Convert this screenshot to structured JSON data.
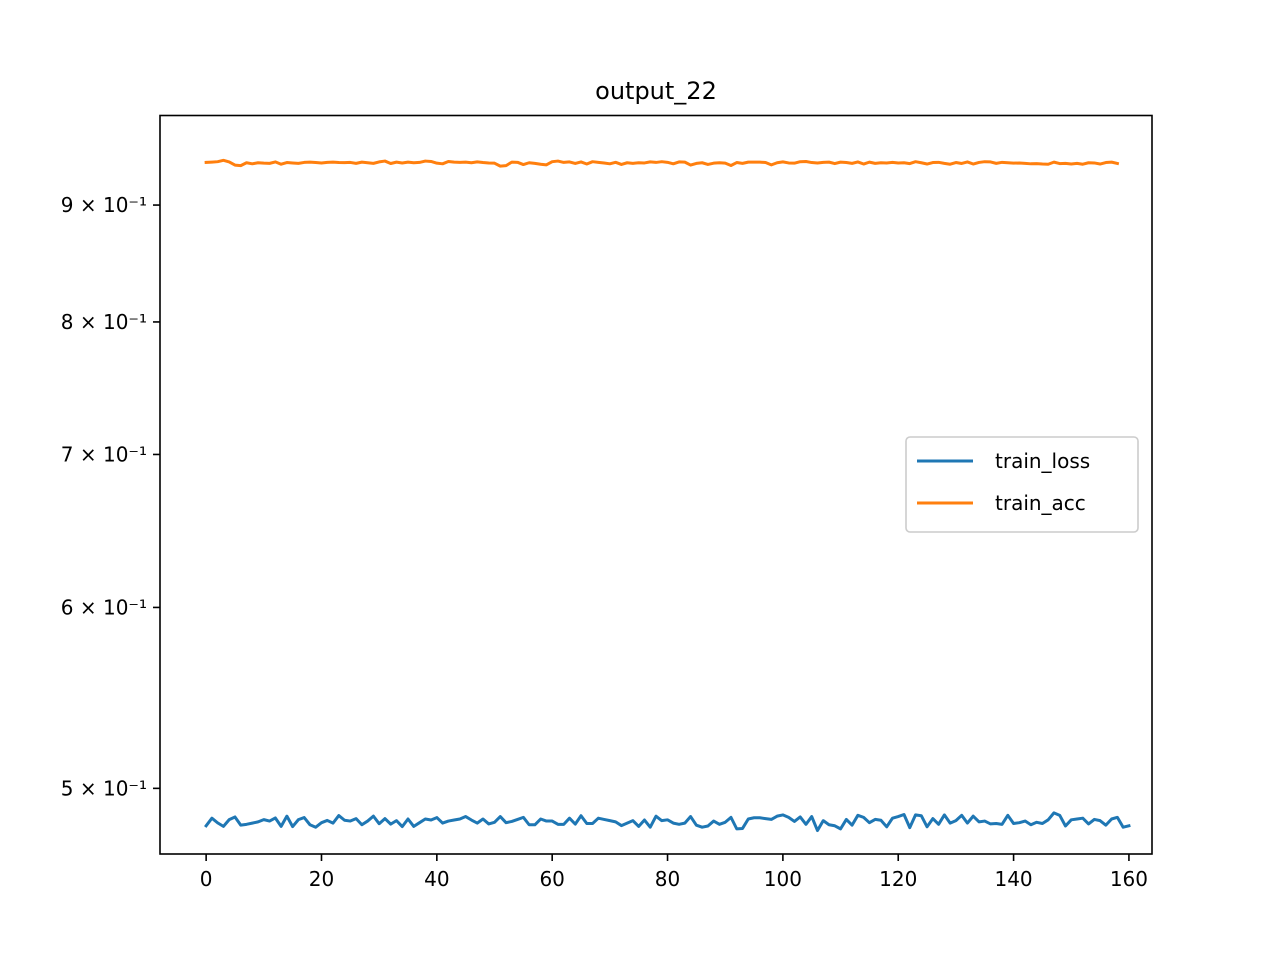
{
  "chart_data": {
    "type": "line",
    "title": "output_22",
    "xlabel": "",
    "ylabel": "",
    "y_scale": "log",
    "xlim": [
      -8,
      164
    ],
    "ylim": [
      0.468,
      0.985
    ],
    "x_ticks": [
      0,
      20,
      40,
      60,
      80,
      100,
      120,
      140,
      160
    ],
    "y_ticks": [
      {
        "value": 0.5,
        "label": "5 × 10⁻¹"
      },
      {
        "value": 0.6,
        "label": "6 × 10⁻¹"
      },
      {
        "value": 0.7,
        "label": "7 × 10⁻¹"
      },
      {
        "value": 0.8,
        "label": "8 × 10⁻¹"
      },
      {
        "value": 0.9,
        "label": "9 × 10⁻¹"
      }
    ],
    "grid": false,
    "legend_position": "center-right",
    "series": [
      {
        "name": "train_loss",
        "color": "#1f77b4",
        "values": [
          0.4815,
          0.4852,
          0.4829,
          0.4812,
          0.4845,
          0.4858,
          0.4818,
          0.4822,
          0.4828,
          0.4834,
          0.4845,
          0.4838,
          0.4853,
          0.4812,
          0.4862,
          0.4811,
          0.4845,
          0.4855,
          0.482,
          0.4808,
          0.483,
          0.4841,
          0.4828,
          0.4865,
          0.4842,
          0.4838,
          0.485,
          0.482,
          0.4838,
          0.4862,
          0.4825,
          0.485,
          0.4823,
          0.484,
          0.4811,
          0.4848,
          0.4812,
          0.483,
          0.4848,
          0.4843,
          0.4855,
          0.4828,
          0.4838,
          0.4843,
          0.4848,
          0.486,
          0.4843,
          0.4828,
          0.4848,
          0.4824,
          0.4832,
          0.486,
          0.483,
          0.4836,
          0.4846,
          0.4856,
          0.482,
          0.482,
          0.4848,
          0.4838,
          0.4838,
          0.4822,
          0.4822,
          0.4852,
          0.4823,
          0.4864,
          0.4826,
          0.4826,
          0.4852,
          0.4846,
          0.484,
          0.4834,
          0.4816,
          0.4828,
          0.484,
          0.4812,
          0.4843,
          0.4808,
          0.4862,
          0.484,
          0.4844,
          0.4828,
          0.4822,
          0.4828,
          0.486,
          0.4818,
          0.4808,
          0.4814,
          0.4838,
          0.4822,
          0.4832,
          0.4856,
          0.48,
          0.4802,
          0.4848,
          0.4854,
          0.4854,
          0.485,
          0.4846,
          0.4862,
          0.4868,
          0.4856,
          0.4836,
          0.4858,
          0.4822,
          0.486,
          0.4792,
          0.484,
          0.482,
          0.4815,
          0.48,
          0.4846,
          0.4818,
          0.4866,
          0.4856,
          0.483,
          0.4846,
          0.4842,
          0.481,
          0.4852,
          0.486,
          0.487,
          0.4806,
          0.4868,
          0.4864,
          0.481,
          0.485,
          0.4822,
          0.4868,
          0.4828,
          0.484,
          0.4866,
          0.4828,
          0.4862,
          0.4834,
          0.4838,
          0.4824,
          0.4826,
          0.4822,
          0.4866,
          0.4826,
          0.483,
          0.4838,
          0.482,
          0.4832,
          0.4826,
          0.4844,
          0.4878,
          0.4866,
          0.4814,
          0.4844,
          0.4848,
          0.4852,
          0.4824,
          0.4846,
          0.484,
          0.4818,
          0.4848,
          0.4856,
          0.4808,
          0.4815
        ]
      },
      {
        "name": "train_acc",
        "color": "#ff7f0e",
        "values": [
          0.9395,
          0.9398,
          0.9402,
          0.9415,
          0.94,
          0.937,
          0.9365,
          0.9392,
          0.9382,
          0.9392,
          0.9388,
          0.9386,
          0.94,
          0.9378,
          0.9394,
          0.939,
          0.9386,
          0.9395,
          0.9398,
          0.9394,
          0.939,
          0.9396,
          0.9398,
          0.9394,
          0.9393,
          0.9395,
          0.9386,
          0.9398,
          0.9392,
          0.9386,
          0.94,
          0.9408,
          0.9385,
          0.9398,
          0.939,
          0.9398,
          0.9392,
          0.9395,
          0.9408,
          0.9404,
          0.9388,
          0.9382,
          0.9404,
          0.9398,
          0.9396,
          0.9398,
          0.9392,
          0.94,
          0.9394,
          0.939,
          0.9388,
          0.936,
          0.9365,
          0.9398,
          0.9396,
          0.9375,
          0.9392,
          0.9386,
          0.9378,
          0.9372,
          0.9402,
          0.9408,
          0.9395,
          0.94,
          0.9385,
          0.94,
          0.938,
          0.9402,
          0.9396,
          0.939,
          0.9382,
          0.9396,
          0.9376,
          0.9392,
          0.9386,
          0.9392,
          0.939,
          0.94,
          0.9395,
          0.9402,
          0.9396,
          0.9382,
          0.94,
          0.9398,
          0.937,
          0.9386,
          0.9392,
          0.9376,
          0.9388,
          0.9392,
          0.9388,
          0.9366,
          0.9394,
          0.9386,
          0.9398,
          0.9398,
          0.9398,
          0.9394,
          0.9372,
          0.9392,
          0.94,
          0.939,
          0.9388,
          0.9402,
          0.9404,
          0.9394,
          0.939,
          0.9396,
          0.9398,
          0.9384,
          0.9398,
          0.9394,
          0.9386,
          0.94,
          0.938,
          0.9398,
          0.9386,
          0.9392,
          0.939,
          0.9396,
          0.939,
          0.9392,
          0.9384,
          0.9402,
          0.9392,
          0.938,
          0.9394,
          0.9396,
          0.9386,
          0.9378,
          0.9394,
          0.9385,
          0.94,
          0.938,
          0.9395,
          0.9402,
          0.94,
          0.9386,
          0.9396,
          0.9392,
          0.9388,
          0.939,
          0.9386,
          0.9382,
          0.9384,
          0.938,
          0.9378,
          0.9398,
          0.9384,
          0.9386,
          0.938,
          0.9386,
          0.9378,
          0.9392,
          0.939,
          0.938,
          0.9394,
          0.9398,
          0.9385
        ]
      }
    ]
  }
}
